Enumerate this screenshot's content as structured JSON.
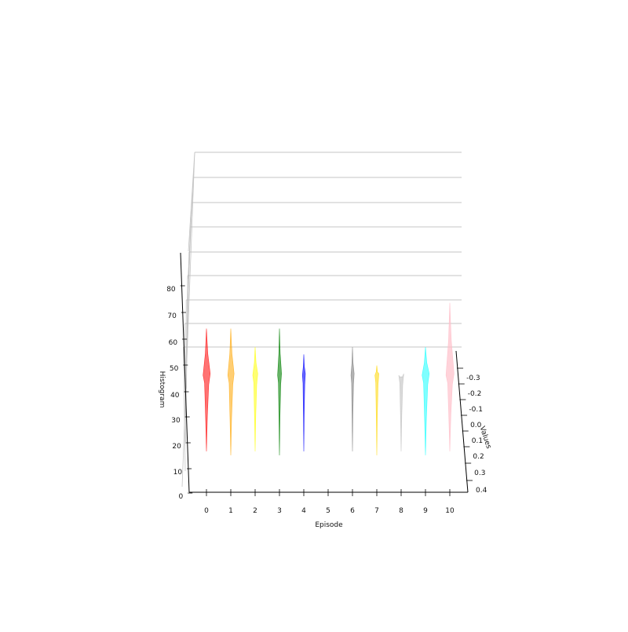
{
  "chart_data": {
    "type": "area",
    "title": "",
    "xlabel": "Episode",
    "ylabel": "Values",
    "zlabel": "Histogram",
    "x_ticks": [
      "0",
      "1",
      "2",
      "3",
      "4",
      "5",
      "6",
      "7",
      "8",
      "9",
      "10"
    ],
    "y_ticks": [
      "-0.3",
      "-0.2",
      "-0.1",
      "0.0",
      "0.1",
      "0.2",
      "0.3",
      "0.4"
    ],
    "z_ticks": [
      "0",
      "10",
      "20",
      "30",
      "40",
      "50",
      "60",
      "70",
      "80"
    ],
    "xlim": [
      0,
      10
    ],
    "ylim": [
      -0.35,
      0.4
    ],
    "zlim": [
      0,
      90
    ],
    "grid": true,
    "series": [
      {
        "episode": 0,
        "color": "#ff0000",
        "opacity": 0.55,
        "peak": 55,
        "half_width": 0.04
      },
      {
        "episode": 1,
        "color": "#ffa500",
        "opacity": 0.55,
        "peak": 55,
        "half_width": 0.035
      },
      {
        "episode": 2,
        "color": "#ffff00",
        "opacity": 0.55,
        "peak": 50,
        "half_width": 0.028
      },
      {
        "episode": 3,
        "color": "#008000",
        "opacity": 0.6,
        "peak": 55,
        "half_width": 0.022
      },
      {
        "episode": 4,
        "color": "#0000ff",
        "opacity": 0.6,
        "peak": 48,
        "half_width": 0.015
      },
      {
        "episode": 6,
        "color": "#808080",
        "opacity": 0.6,
        "peak": 50,
        "half_width": 0.018
      },
      {
        "episode": 7,
        "color": "#ffd700",
        "opacity": 0.55,
        "peak": 45,
        "half_width": 0.022
      },
      {
        "episode": 8,
        "color": "#c0c0c0",
        "opacity": 0.6,
        "peak": 42,
        "half_width": 0.028
      },
      {
        "episode": 9,
        "color": "#00ffff",
        "opacity": 0.5,
        "peak": 50,
        "half_width": 0.04
      },
      {
        "episode": 10,
        "color": "#ffc0cb",
        "opacity": 0.7,
        "peak": 62,
        "half_width": 0.045
      }
    ]
  }
}
